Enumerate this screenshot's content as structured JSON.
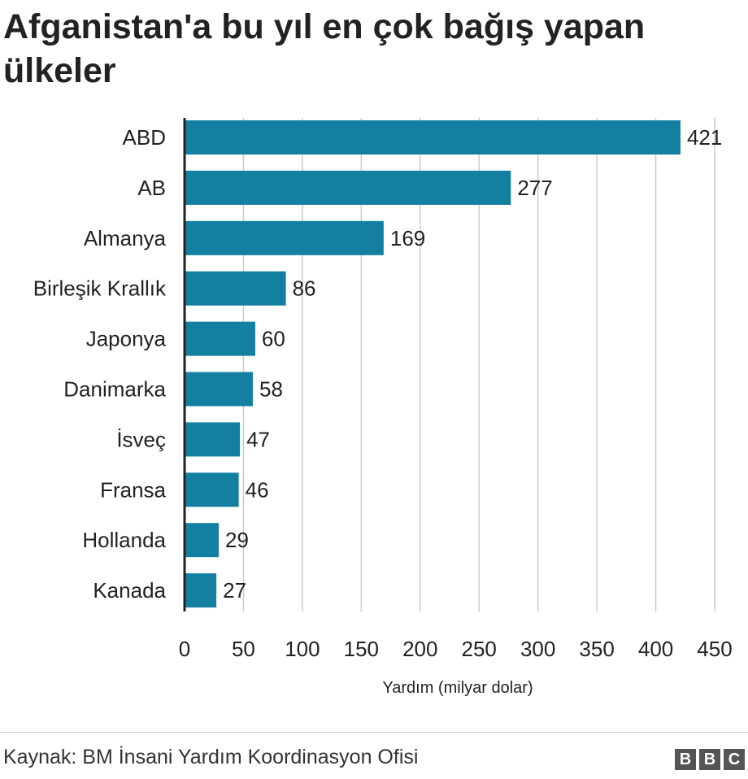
{
  "title": "Afganistan'a bu yıl en çok bağış yapan ülkeler",
  "source": "Kaynak: BM İnsani Yardım Koordinasyon Ofisi",
  "logo_letters": [
    "B",
    "B",
    "C"
  ],
  "colors": {
    "bar": "#1380A1",
    "grid": "#cbcbcb",
    "axis": "#222222",
    "text": "#222222"
  },
  "chart_data": {
    "type": "bar",
    "orientation": "horizontal",
    "categories": [
      "ABD",
      "AB",
      "Almanya",
      "Birleşik Krallık",
      "Japonya",
      "Danimarka",
      "İsveç",
      "Fransa",
      "Hollanda",
      "Kanada"
    ],
    "values": [
      421,
      277,
      169,
      86,
      60,
      58,
      47,
      46,
      29,
      27
    ],
    "xlabel": "Yardım (milyar dolar)",
    "ylabel": "",
    "xlim": [
      0,
      450
    ],
    "xticks": [
      0,
      50,
      100,
      150,
      200,
      250,
      300,
      350,
      400,
      450
    ],
    "grid": true,
    "data_labels": true
  }
}
